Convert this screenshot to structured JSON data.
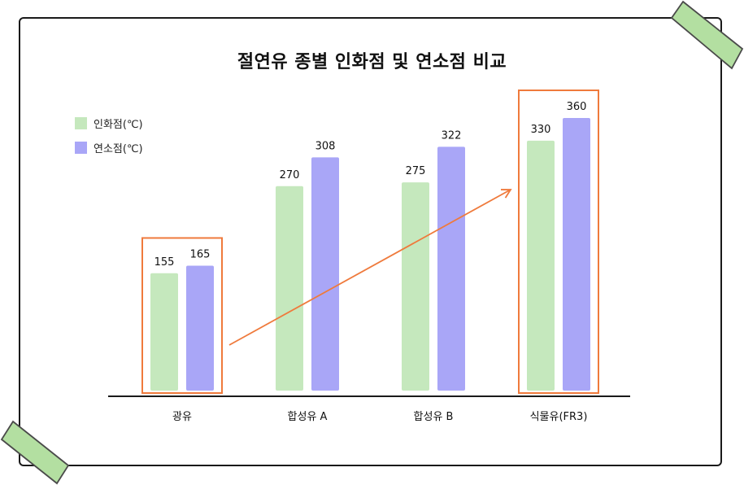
{
  "chart_data": {
    "type": "bar",
    "title": "절연유 종별 인화점 및 연소점 비교",
    "categories": [
      "광유",
      "합성유 A",
      "합성유 B",
      "식물유(FR3)"
    ],
    "series": [
      {
        "name": "인화점(℃)",
        "values": [
          155,
          270,
          275,
          330
        ],
        "labels": [
          "155",
          "270",
          "275",
          "330"
        ]
      },
      {
        "name": "연소점(℃)",
        "values": [
          165,
          308,
          322,
          360
        ],
        "labels": [
          "165",
          "308",
          "322",
          "360"
        ]
      }
    ],
    "xlabel": "",
    "ylabel": "",
    "grid": false,
    "legend_position": "top-left",
    "highlighted_categories": [
      "광유",
      "식물유(FR3)"
    ],
    "trend_arrow": true
  },
  "colors": {
    "series_1": "#c5e8bd",
    "series_2": "#a9a6f7",
    "highlight": "#ef7a3c",
    "arrow": "#ef7a3c",
    "tape": "#b3dfa1",
    "frame": "#1a1a1a"
  },
  "decorations": [
    "tape-top-right",
    "tape-bottom-left"
  ]
}
